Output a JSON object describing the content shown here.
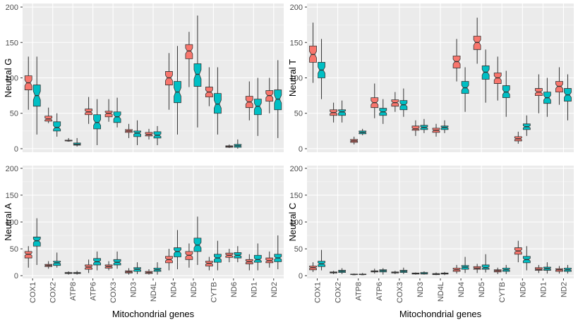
{
  "colors": {
    "panel_bg": "#EBEBEB",
    "grid_major": "#FFFFFF",
    "series_1": "#F8766D",
    "series_2": "#00BFC4",
    "outline": "#333333",
    "axis_text": "#4D4D4D"
  },
  "chart_data": {
    "type": "boxplot",
    "layout": "2x2 facets",
    "xlabel": "Mitochondrial genes",
    "categories": [
      "COX1",
      "COX2",
      "ATP8",
      "ATP6",
      "COX3",
      "ND3",
      "ND4L",
      "ND4",
      "ND5",
      "CYTB",
      "ND6",
      "ND1",
      "ND2"
    ],
    "ylim": [
      -5,
      205
    ],
    "yticks": [
      0,
      50,
      100,
      150,
      200
    ],
    "notched": true,
    "grid": true,
    "legend": "none",
    "panels": [
      {
        "ylabel": "Neutral G",
        "series": [
          {
            "boxes": [
              [
                55,
                83,
                93,
                103,
                130
              ],
              [
                36,
                39,
                42,
                46,
                58
              ],
              [
                10,
                11,
                11,
                12,
                15
              ],
              [
                35,
                48,
                52,
                56,
                73
              ],
              [
                38,
                45,
                50,
                53,
                70
              ],
              [
                15,
                23,
                25,
                27,
                35
              ],
              [
                13,
                18,
                20,
                23,
                28
              ],
              [
                55,
                90,
                100,
                109,
                135
              ],
              [
                87,
                127,
                138,
                147,
                165
              ],
              [
                60,
                73,
                80,
                87,
                115
              ],
              [
                1,
                2,
                3,
                4,
                6
              ],
              [
                40,
                58,
                66,
                74,
                95
              ],
              [
                50,
                67,
                75,
                82,
                100
              ]
            ]
          },
          {
            "boxes": [
              [
                20,
                60,
                75,
                90,
                130
              ],
              [
                17,
                25,
                30,
                38,
                50
              ],
              [
                3,
                5,
                6,
                8,
                15
              ],
              [
                5,
                28,
                37,
                48,
                70
              ],
              [
                30,
                37,
                45,
                52,
                72
              ],
              [
                5,
                17,
                22,
                25,
                40
              ],
              [
                5,
                15,
                19,
                24,
                32
              ],
              [
                20,
                65,
                80,
                95,
                145
              ],
              [
                30,
                88,
                105,
                120,
                188
              ],
              [
                20,
                50,
                63,
                78,
                115
              ],
              [
                0,
                2,
                4,
                6,
                13
              ],
              [
                18,
                48,
                60,
                70,
                100
              ],
              [
                15,
                55,
                70,
                83,
                125
              ]
            ]
          }
        ]
      },
      {
        "ylabel": "Neutral T",
        "series": [
          {
            "boxes": [
              [
                93,
                122,
                133,
                145,
                178
              ],
              [
                37,
                47,
                51,
                55,
                65
              ],
              [
                6,
                9,
                11,
                13,
                17
              ],
              [
                43,
                58,
                65,
                72,
                92
              ],
              [
                52,
                60,
                65,
                69,
                80
              ],
              [
                18,
                26,
                28,
                32,
                40
              ],
              [
                17,
                23,
                26,
                29,
                35
              ],
              [
                95,
                114,
                123,
                131,
                155
              ],
              [
                120,
                140,
                150,
                159,
                185
              ],
              [
                68,
                92,
                100,
                107,
                130
              ],
              [
                7,
                11,
                14,
                17,
                24
              ],
              [
                50,
                75,
                80,
                85,
                105
              ],
              [
                62,
                80,
                88,
                95,
                115
              ]
            ]
          },
          {
            "boxes": [
              [
                70,
                100,
                111,
                122,
                155
              ],
              [
                37,
                47,
                52,
                55,
                68
              ],
              [
                19,
                21,
                23,
                25,
                28
              ],
              [
                35,
                47,
                52,
                57,
                70
              ],
              [
                45,
                55,
                62,
                68,
                85
              ],
              [
                22,
                27,
                30,
                33,
                42
              ],
              [
                22,
                27,
                30,
                32,
                40
              ],
              [
                52,
                78,
                86,
                95,
                115
              ],
              [
                65,
                98,
                108,
                117,
                140
              ],
              [
                45,
                72,
                80,
                89,
                110
              ],
              [
                18,
                27,
                31,
                35,
                47
              ],
              [
                45,
                64,
                72,
                80,
                100
              ],
              [
                40,
                67,
                76,
                85,
                105
              ]
            ]
          }
        ]
      },
      {
        "ylabel": "Neutral A",
        "series": [
          {
            "boxes": [
              [
                15,
                33,
                40,
                45,
                55
              ],
              [
                13,
                17,
                19,
                21,
                27
              ],
              [
                2,
                4,
                5,
                6,
                8
              ],
              [
                5,
                12,
                16,
                20,
                30
              ],
              [
                10,
                14,
                17,
                20,
                27
              ],
              [
                2,
                5,
                7,
                9,
                14
              ],
              [
                2,
                4,
                6,
                8,
                12
              ],
              [
                10,
                24,
                30,
                36,
                50
              ],
              [
                15,
                30,
                38,
                45,
                60
              ],
              [
                10,
                18,
                23,
                27,
                35
              ],
              [
                25,
                34,
                38,
                42,
                50
              ],
              [
                10,
                22,
                26,
                30,
                40
              ],
              [
                15,
                24,
                28,
                33,
                45
              ]
            ]
          },
          {
            "boxes": [
              [
                20,
                55,
                65,
                72,
                107
              ],
              [
                15,
                19,
                24,
                27,
                43
              ],
              [
                2,
                4,
                5,
                6,
                9
              ],
              [
                10,
                20,
                26,
                32,
                45
              ],
              [
                13,
                20,
                25,
                30,
                45
              ],
              [
                3,
                8,
                12,
                15,
                25
              ],
              [
                2,
                8,
                11,
                14,
                25
              ],
              [
                12,
                35,
                45,
                52,
                85
              ],
              [
                20,
                45,
                57,
                70,
                110
              ],
              [
                10,
                25,
                33,
                40,
                65
              ],
              [
                25,
                33,
                38,
                43,
                55
              ],
              [
                10,
                25,
                30,
                38,
                60
              ],
              [
                12,
                26,
                33,
                40,
                75
              ]
            ]
          }
        ]
      },
      {
        "ylabel": "Neutral C",
        "series": [
          {
            "boxes": [
              [
                7,
                11,
                15,
                18,
                25
              ],
              [
                3,
                5,
                6,
                7,
                9
              ],
              [
                1,
                2,
                2,
                3,
                4
              ],
              [
                4,
                7,
                8,
                9,
                13
              ],
              [
                3,
                5,
                6,
                7,
                9
              ],
              [
                2,
                3,
                4,
                5,
                6
              ],
              [
                1,
                2,
                3,
                4,
                6
              ],
              [
                4,
                8,
                11,
                14,
                20
              ],
              [
                5,
                12,
                14,
                17,
                22
              ],
              [
                3,
                7,
                9,
                11,
                15
              ],
              [
                25,
                40,
                46,
                52,
                65
              ],
              [
                5,
                10,
                12,
                15,
                20
              ],
              [
                4,
                8,
                11,
                13,
                18
              ]
            ]
          },
          {
            "boxes": [
              [
                10,
                17,
                22,
                27,
                48
              ],
              [
                3,
                6,
                8,
                10,
                14
              ],
              [
                1,
                2,
                2,
                3,
                5
              ],
              [
                2,
                7,
                9,
                11,
                14
              ],
              [
                3,
                6,
                8,
                10,
                15
              ],
              [
                2,
                3,
                4,
                6,
                8
              ],
              [
                1,
                3,
                4,
                5,
                7
              ],
              [
                5,
                12,
                16,
                19,
                35
              ],
              [
                6,
                12,
                15,
                20,
                40
              ],
              [
                3,
                8,
                11,
                14,
                20
              ],
              [
                10,
                24,
                30,
                36,
                55
              ],
              [
                4,
                10,
                13,
                16,
                25
              ],
              [
                4,
                8,
                11,
                14,
                20
              ]
            ]
          }
        ]
      }
    ]
  }
}
